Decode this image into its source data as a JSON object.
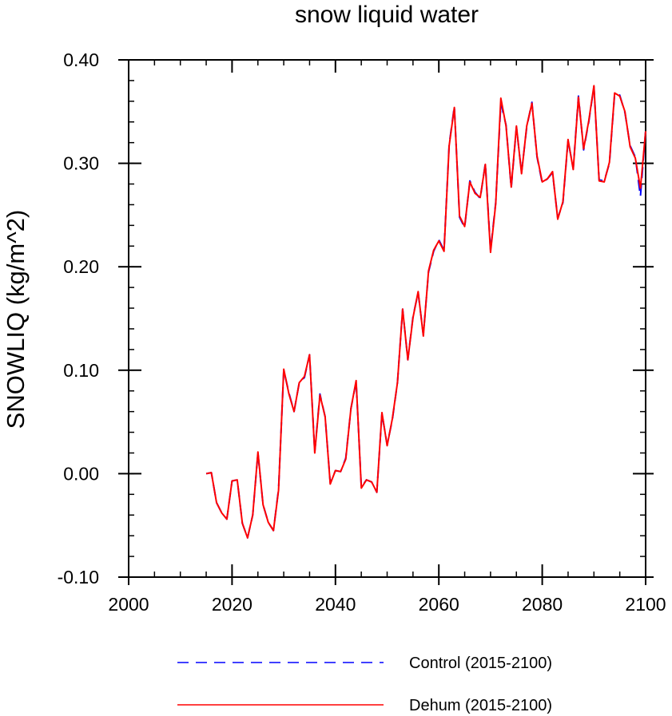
{
  "chart_data": {
    "type": "line",
    "title": "snow liquid water",
    "xlabel": "",
    "ylabel": "SNOWLIQ  (kg/m^2)",
    "xlim": [
      2000,
      2100
    ],
    "ylim": [
      -0.1,
      0.4
    ],
    "x_ticks": [
      "2000",
      "2020",
      "2040",
      "2060",
      "2080",
      "2100"
    ],
    "y_ticks": [
      "-0.10",
      "0.00",
      "0.10",
      "0.20",
      "0.30",
      "0.40"
    ],
    "grid": false,
    "legend_position": "bottom",
    "x": [
      2015,
      2016,
      2017,
      2018,
      2019,
      2020,
      2021,
      2022,
      2023,
      2024,
      2025,
      2026,
      2027,
      2028,
      2029,
      2030,
      2031,
      2032,
      2033,
      2034,
      2035,
      2036,
      2037,
      2038,
      2039,
      2040,
      2041,
      2042,
      2043,
      2044,
      2045,
      2046,
      2047,
      2048,
      2049,
      2050,
      2051,
      2052,
      2053,
      2054,
      2055,
      2056,
      2057,
      2058,
      2059,
      2060,
      2061,
      2062,
      2063,
      2064,
      2065,
      2066,
      2067,
      2068,
      2069,
      2070,
      2071,
      2072,
      2073,
      2074,
      2075,
      2076,
      2077,
      2078,
      2079,
      2080,
      2081,
      2082,
      2083,
      2084,
      2085,
      2086,
      2087,
      2088,
      2089,
      2090,
      2091,
      2092,
      2093,
      2094,
      2095,
      2096,
      2097,
      2098,
      2099,
      2100
    ],
    "series": [
      {
        "name": "Control (2015-2100)",
        "color": "#0000ff",
        "style": "dashed",
        "values": [
          0.0,
          0.001,
          -0.028,
          -0.038,
          -0.044,
          -0.007,
          -0.006,
          -0.048,
          -0.062,
          -0.04,
          0.02,
          -0.03,
          -0.047,
          -0.055,
          -0.015,
          0.1,
          0.078,
          0.06,
          0.088,
          0.093,
          0.115,
          0.021,
          0.077,
          0.055,
          -0.009,
          0.003,
          0.002,
          0.015,
          0.063,
          0.089,
          -0.013,
          -0.006,
          -0.008,
          -0.018,
          0.058,
          0.028,
          0.052,
          0.088,
          0.159,
          0.11,
          0.152,
          0.175,
          0.134,
          0.195,
          0.215,
          0.226,
          0.216,
          0.318,
          0.355,
          0.248,
          0.238,
          0.283,
          0.272,
          0.266,
          0.3,
          0.216,
          0.262,
          0.358,
          0.337,
          0.276,
          0.335,
          0.291,
          0.335,
          0.359,
          0.306,
          0.281,
          0.285,
          0.291,
          0.247,
          0.262,
          0.322,
          0.295,
          0.365,
          0.313,
          0.34,
          0.374,
          0.284,
          0.283,
          0.3,
          0.367,
          0.366,
          0.349,
          0.317,
          0.306,
          0.268,
          0.332
        ]
      },
      {
        "name": "Dehum (2015-2100)",
        "color": "#ff0000",
        "style": "solid",
        "values": [
          0.0,
          0.001,
          -0.028,
          -0.038,
          -0.044,
          -0.007,
          -0.006,
          -0.048,
          -0.062,
          -0.04,
          0.021,
          -0.03,
          -0.047,
          -0.055,
          -0.016,
          0.101,
          0.077,
          0.06,
          0.088,
          0.094,
          0.115,
          0.02,
          0.076,
          0.055,
          -0.01,
          0.003,
          0.002,
          0.014,
          0.063,
          0.09,
          -0.014,
          -0.006,
          -0.008,
          -0.018,
          0.059,
          0.027,
          0.053,
          0.088,
          0.159,
          0.11,
          0.151,
          0.176,
          0.133,
          0.196,
          0.216,
          0.225,
          0.215,
          0.317,
          0.354,
          0.249,
          0.239,
          0.282,
          0.271,
          0.267,
          0.299,
          0.214,
          0.261,
          0.363,
          0.336,
          0.277,
          0.336,
          0.29,
          0.336,
          0.358,
          0.307,
          0.282,
          0.285,
          0.292,
          0.246,
          0.263,
          0.323,
          0.294,
          0.364,
          0.314,
          0.341,
          0.375,
          0.283,
          0.282,
          0.301,
          0.368,
          0.365,
          0.35,
          0.316,
          0.305,
          0.276,
          0.331
        ]
      }
    ]
  }
}
